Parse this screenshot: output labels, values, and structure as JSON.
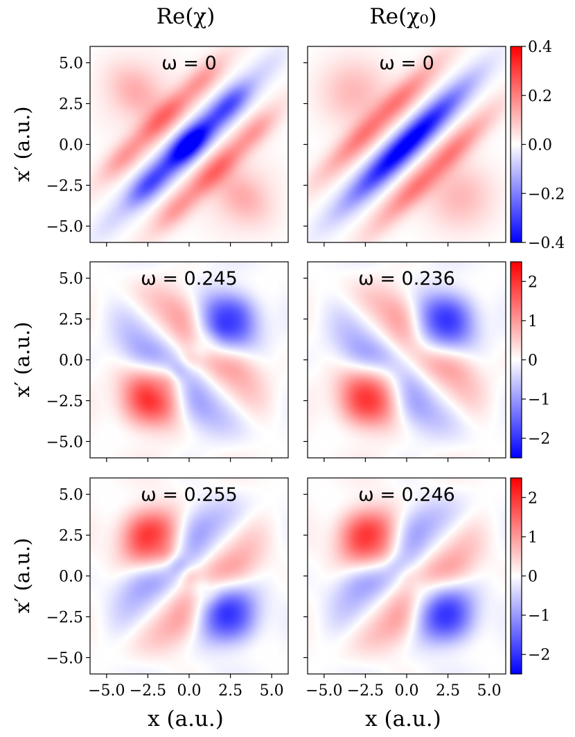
{
  "chart_data": {
    "type": "heatmap",
    "column_titles": [
      "Re(χ)",
      "Re(χ₀)"
    ],
    "xlabel": "x (a.u.)",
    "ylabel": "x′ (a.u.)",
    "xlim": [
      -6,
      6
    ],
    "ylim": [
      -6,
      6
    ],
    "x_ticks": [
      -5.0,
      -2.5,
      0.0,
      2.5,
      5.0
    ],
    "y_ticks": [
      -5.0,
      -2.5,
      0.0,
      2.5,
      5.0
    ],
    "x_tick_labels": [
      "−5.0",
      "−2.5",
      "0.0",
      "2.5",
      "5.0"
    ],
    "y_tick_labels": [
      "−5.0",
      "−2.5",
      "0.0",
      "2.5",
      "5.0"
    ],
    "colormap": [
      "#0000ff",
      "#ffffff",
      "#ff0000"
    ],
    "rows": [
      {
        "panels": [
          {
            "omega_label": "ω = 0",
            "mode": 0,
            "variant": "chi"
          },
          {
            "omega_label": "ω = 0",
            "mode": 0,
            "variant": "chi0"
          }
        ],
        "colorbar": {
          "range": [
            -0.4,
            0.4
          ],
          "ticks": [
            0.4,
            0.2,
            0.0,
            -0.2,
            -0.4
          ],
          "tick_labels": [
            "0.4",
            "0.2",
            "0.0",
            "−0.2",
            "−0.4"
          ]
        }
      },
      {
        "panels": [
          {
            "omega_label": "ω = 0.245",
            "mode": 1,
            "variant": "chi"
          },
          {
            "omega_label": "ω = 0.236",
            "mode": 1,
            "variant": "chi0"
          }
        ],
        "colorbar": {
          "range": [
            -2.5,
            2.5
          ],
          "ticks": [
            2,
            1,
            0,
            -1,
            -2
          ],
          "tick_labels": [
            "2",
            "1",
            "0",
            "−1",
            "−2"
          ]
        }
      },
      {
        "panels": [
          {
            "omega_label": "ω = 0.255",
            "mode": 2,
            "variant": "chi"
          },
          {
            "omega_label": "ω = 0.246",
            "mode": 2,
            "variant": "chi0"
          }
        ],
        "colorbar": {
          "range": [
            -2.5,
            2.5
          ],
          "ticks": [
            2,
            1,
            0,
            -1,
            -2
          ],
          "tick_labels": [
            "2",
            "1",
            "0",
            "−1",
            "−2"
          ]
        }
      }
    ]
  }
}
